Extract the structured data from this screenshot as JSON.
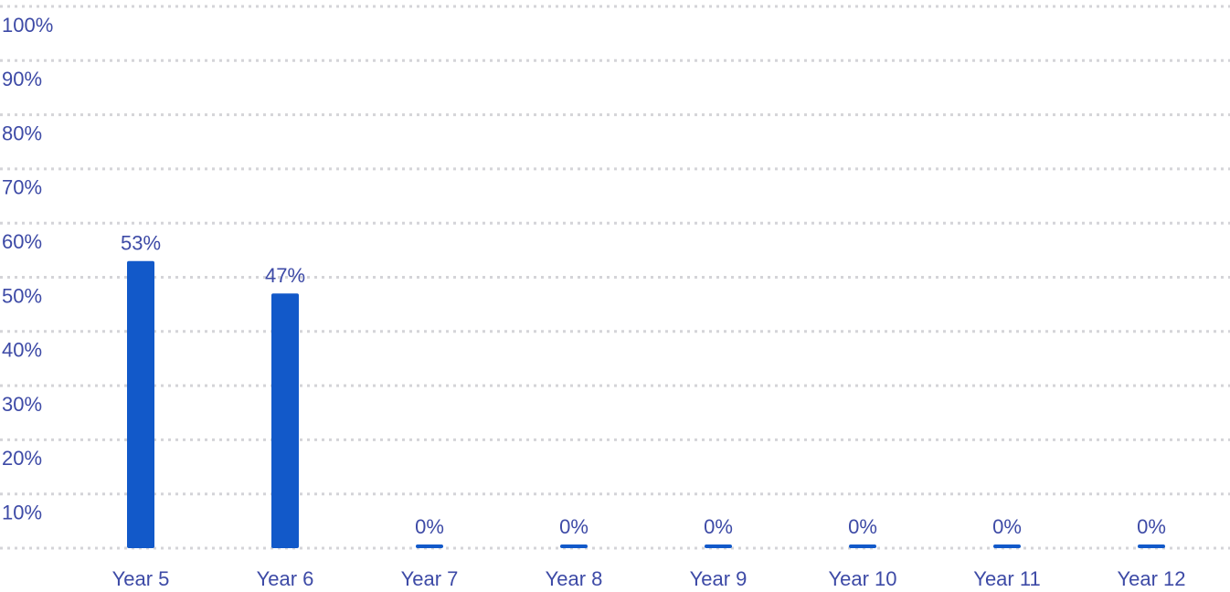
{
  "chart_data": {
    "type": "bar",
    "categories": [
      "Year 5",
      "Year 6",
      "Year 7",
      "Year 8",
      "Year 9",
      "Year 10",
      "Year 11",
      "Year 12"
    ],
    "values": [
      53,
      47,
      0,
      0,
      0,
      0,
      0,
      0
    ],
    "value_labels": [
      "53%",
      "47%",
      "0%",
      "0%",
      "0%",
      "0%",
      "0%",
      "0%"
    ],
    "color": "#1259c9",
    "ylim": [
      0,
      100
    ],
    "yticks": [
      {
        "value": 10,
        "label": "10%"
      },
      {
        "value": 20,
        "label": "20%"
      },
      {
        "value": 30,
        "label": "30%"
      },
      {
        "value": 40,
        "label": "40%"
      },
      {
        "value": 50,
        "label": "50%"
      },
      {
        "value": 60,
        "label": "60%"
      },
      {
        "value": 70,
        "label": "70%"
      },
      {
        "value": 80,
        "label": "80%"
      },
      {
        "value": 90,
        "label": "90%"
      },
      {
        "value": 100,
        "label": "100%"
      }
    ],
    "grid": true
  }
}
